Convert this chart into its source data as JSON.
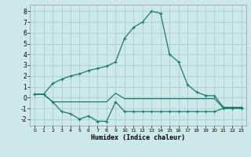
{
  "xlabel": "Humidex (Indice chaleur)",
  "background_color": "#cde8e8",
  "grid_color": "#aacfcf",
  "line_color": "#1e7a70",
  "xlim": [
    -0.5,
    23.5
  ],
  "ylim": [
    -2.6,
    8.6
  ],
  "xticks": [
    0,
    1,
    2,
    3,
    4,
    5,
    6,
    7,
    8,
    9,
    10,
    11,
    12,
    13,
    14,
    15,
    16,
    17,
    18,
    19,
    20,
    21,
    22,
    23
  ],
  "yticks": [
    -2,
    -1,
    0,
    1,
    2,
    3,
    4,
    5,
    6,
    7,
    8
  ],
  "line_main_x": [
    0,
    1,
    2,
    3,
    4,
    5,
    6,
    7,
    8,
    9,
    10,
    11,
    12,
    13,
    14,
    15,
    16,
    17,
    18,
    19,
    20,
    21,
    22,
    23
  ],
  "line_main_y": [
    0.3,
    0.3,
    1.3,
    1.7,
    2.0,
    2.2,
    2.5,
    2.7,
    2.9,
    3.3,
    5.5,
    6.5,
    7.0,
    8.0,
    7.8,
    4.0,
    3.3,
    1.2,
    0.5,
    0.2,
    0.15,
    -0.9,
    -0.9,
    -0.9
  ],
  "line_mid_x": [
    0,
    1,
    2,
    3,
    4,
    5,
    6,
    7,
    8,
    9,
    10,
    11,
    12,
    13,
    14,
    15,
    16,
    17,
    18,
    19,
    20,
    21,
    22,
    23
  ],
  "line_mid_y": [
    0.3,
    0.3,
    -0.4,
    -0.4,
    -0.4,
    -0.4,
    -0.4,
    -0.4,
    -0.4,
    0.4,
    -0.1,
    -0.1,
    -0.1,
    -0.1,
    -0.1,
    -0.1,
    -0.1,
    -0.1,
    -0.1,
    -0.1,
    -0.1,
    -1.0,
    -1.0,
    -1.0
  ],
  "line_low_x": [
    0,
    1,
    2,
    3,
    4,
    5,
    6,
    7,
    8,
    9,
    10,
    11,
    12,
    13,
    14,
    15,
    16,
    17,
    18,
    19,
    20,
    21,
    22,
    23
  ],
  "line_low_y": [
    0.3,
    0.3,
    -0.4,
    -1.3,
    -1.5,
    -2.0,
    -1.7,
    -2.2,
    -2.2,
    -0.4,
    -1.3,
    -1.3,
    -1.3,
    -1.3,
    -1.3,
    -1.3,
    -1.3,
    -1.3,
    -1.3,
    -1.3,
    -1.3,
    -1.0,
    -1.0,
    -1.0
  ]
}
